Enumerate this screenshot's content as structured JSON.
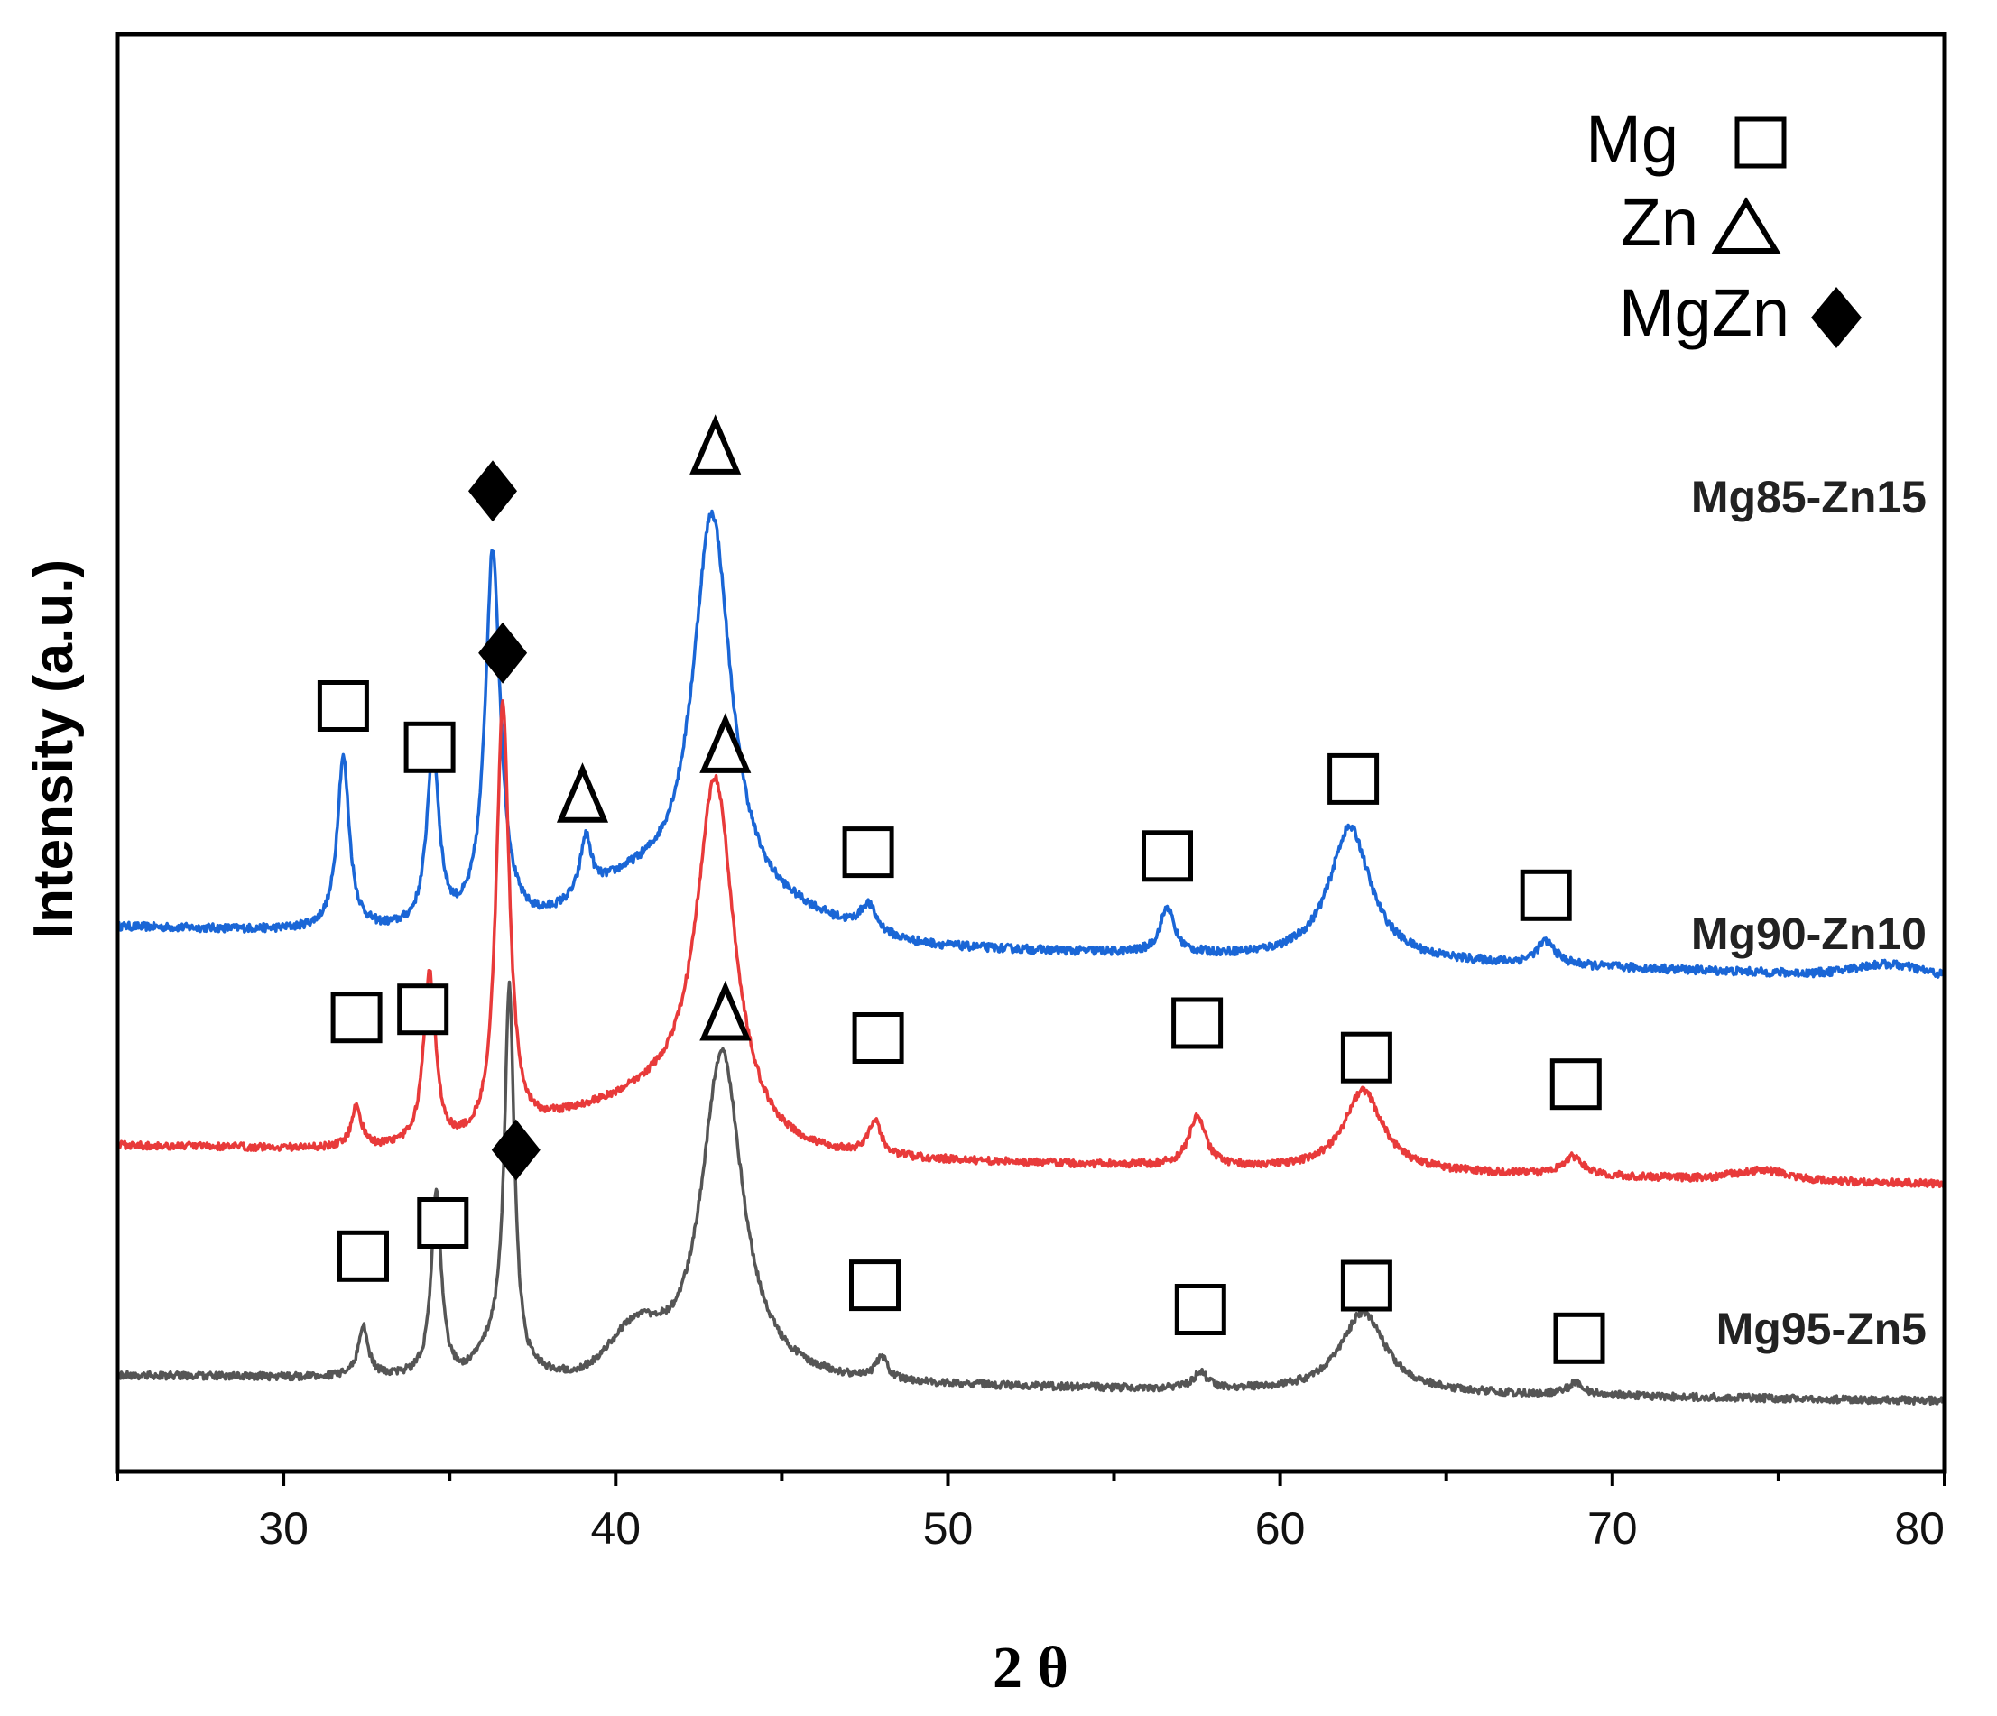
{
  "chart_data": {
    "type": "line",
    "title": "",
    "xlabel": "2 θ",
    "ylabel": "Intensity (a.u.)",
    "xlim": [
      25,
      80
    ],
    "xticks": [
      30,
      40,
      50,
      60,
      70,
      80
    ],
    "yticks": "none",
    "grid": false,
    "legend": {
      "placement": "top-right",
      "entries": [
        {
          "label": "Mg",
          "symbol": "open-square"
        },
        {
          "label": "Zn",
          "symbol": "open-triangle"
        },
        {
          "label": "MgZn",
          "symbol": "filled-diamond"
        }
      ]
    },
    "series": [
      {
        "name": "Mg85-Zn15",
        "color": "#1a66d6",
        "baseline": 1.95,
        "slope": -0.004,
        "noise": 0.018,
        "peaks": [
          {
            "x": 31.8,
            "height": 0.75,
            "width": 0.22,
            "phase": "Mg"
          },
          {
            "x": 34.5,
            "height": 0.78,
            "width": 0.22,
            "phase": "Mg"
          },
          {
            "x": 36.3,
            "height": 1.65,
            "width": 0.28,
            "phase": "MgZn"
          },
          {
            "x": 39.1,
            "height": 0.25,
            "width": 0.2,
            "phase": "Zn"
          },
          {
            "x": 42.9,
            "height": 1.75,
            "width": 0.7,
            "phase": "Zn"
          },
          {
            "x": 47.6,
            "height": 0.12,
            "width": 0.3,
            "phase": "Mg"
          },
          {
            "x": 56.6,
            "height": 0.2,
            "width": 0.25,
            "phase": "Mg"
          },
          {
            "x": 62.1,
            "height": 0.58,
            "width": 0.75,
            "phase": "Mg"
          },
          {
            "x": 68.0,
            "height": 0.1,
            "width": 0.35,
            "phase": "Mg"
          }
        ],
        "humps": [
          {
            "x": 40.5,
            "height": 0.2,
            "width": 1.6
          },
          {
            "x": 45.0,
            "height": 0.1,
            "width": 1.8
          },
          {
            "x": 78.3,
            "height": 0.05,
            "width": 1.0
          }
        ]
      },
      {
        "name": "Mg90-Zn10",
        "color": "#e83a3a",
        "baseline": 1.0,
        "slope": -0.003,
        "noise": 0.016,
        "peaks": [
          {
            "x": 32.2,
            "height": 0.18,
            "width": 0.18,
            "phase": "Mg"
          },
          {
            "x": 34.4,
            "height": 0.75,
            "width": 0.22,
            "phase": "Mg"
          },
          {
            "x": 36.6,
            "height": 1.9,
            "width": 0.24,
            "phase": "MgZn"
          },
          {
            "x": 43.0,
            "height": 1.55,
            "width": 0.7,
            "phase": "Zn"
          },
          {
            "x": 47.8,
            "height": 0.15,
            "width": 0.22,
            "phase": "Mg"
          },
          {
            "x": 57.5,
            "height": 0.22,
            "width": 0.3,
            "phase": "Mg"
          },
          {
            "x": 62.5,
            "height": 0.35,
            "width": 0.7,
            "phase": "Mg"
          },
          {
            "x": 68.8,
            "height": 0.08,
            "width": 0.35,
            "phase": "Mg"
          }
        ],
        "humps": [
          {
            "x": 38.5,
            "height": 0.1,
            "width": 1.2
          },
          {
            "x": 41.2,
            "height": 0.2,
            "width": 1.5
          },
          {
            "x": 74.5,
            "height": 0.04,
            "width": 0.8
          }
        ]
      },
      {
        "name": "Mg95-Zn5",
        "color": "#555555",
        "baseline": 0.0,
        "slope": -0.002,
        "noise": 0.016,
        "peaks": [
          {
            "x": 32.4,
            "height": 0.22,
            "width": 0.18,
            "phase": "Mg"
          },
          {
            "x": 34.6,
            "height": 0.8,
            "width": 0.18,
            "phase": "Mg"
          },
          {
            "x": 36.8,
            "height": 1.65,
            "width": 0.18,
            "phase": "MgZn"
          },
          {
            "x": 43.2,
            "height": 1.45,
            "width": 0.75,
            "phase": "Zn"
          },
          {
            "x": 48.0,
            "height": 0.1,
            "width": 0.2,
            "phase": "Mg"
          },
          {
            "x": 57.6,
            "height": 0.07,
            "width": 0.25,
            "phase": "Mg"
          },
          {
            "x": 62.5,
            "height": 0.35,
            "width": 0.8,
            "phase": "Mg"
          },
          {
            "x": 68.9,
            "height": 0.05,
            "width": 0.3,
            "phase": "Mg"
          }
        ],
        "humps": [
          {
            "x": 40.6,
            "height": 0.18,
            "width": 0.7
          },
          {
            "x": 36.3,
            "height": 0.1,
            "width": 0.4
          }
        ]
      }
    ],
    "annotations": [
      {
        "symbol": "square",
        "x": 31.8,
        "series": 0,
        "offset": 0.22
      },
      {
        "symbol": "square",
        "x": 34.4,
        "series": 0,
        "offset": 0.12
      },
      {
        "symbol": "diamond",
        "x": 36.3,
        "series": 0,
        "offset": 0.25
      },
      {
        "symbol": "triangle",
        "x": 39.0,
        "series": 0,
        "offset": 0.22
      },
      {
        "symbol": "triangle",
        "x": 43.0,
        "series": 0,
        "offset": 0.32
      },
      {
        "symbol": "square",
        "x": 47.6,
        "series": 0,
        "offset": 0.22
      },
      {
        "symbol": "square",
        "x": 56.6,
        "series": 0,
        "offset": 0.22
      },
      {
        "symbol": "square",
        "x": 62.2,
        "series": 0,
        "offset": 0.22
      },
      {
        "symbol": "square",
        "x": 68.0,
        "series": 0,
        "offset": 0.2
      },
      {
        "symbol": "square",
        "x": 32.2,
        "series": 1,
        "offset": 0.38
      },
      {
        "symbol": "square",
        "x": 34.2,
        "series": 1,
        "offset": 0.18
      },
      {
        "symbol": "diamond",
        "x": 36.6,
        "series": 1,
        "offset": 0.22
      },
      {
        "symbol": "triangle",
        "x": 43.3,
        "series": 1,
        "offset": 0.4
      },
      {
        "symbol": "square",
        "x": 47.9,
        "series": 1,
        "offset": 0.38
      },
      {
        "symbol": "square",
        "x": 57.5,
        "series": 1,
        "offset": 0.4
      },
      {
        "symbol": "square",
        "x": 62.6,
        "series": 1,
        "offset": 0.15
      },
      {
        "symbol": "square",
        "x": 68.9,
        "series": 1,
        "offset": 0.32
      },
      {
        "symbol": "square",
        "x": 32.4,
        "series": 2,
        "offset": 0.3
      },
      {
        "symbol": "square",
        "x": 34.8,
        "series": 2,
        "offset": 0.3
      },
      {
        "symbol": "diamond",
        "x": 37.0,
        "series": 2,
        "offset": 0.22
      },
      {
        "symbol": "triangle",
        "x": 43.3,
        "series": 2,
        "offset": 0.18
      },
      {
        "symbol": "square",
        "x": 47.8,
        "series": 2,
        "offset": 0.35
      },
      {
        "symbol": "square",
        "x": 57.6,
        "series": 2,
        "offset": 0.27
      },
      {
        "symbol": "square",
        "x": 62.6,
        "series": 2,
        "offset": 0.12
      },
      {
        "symbol": "square",
        "x": 69.0,
        "series": 2,
        "offset": 0.2
      }
    ]
  }
}
